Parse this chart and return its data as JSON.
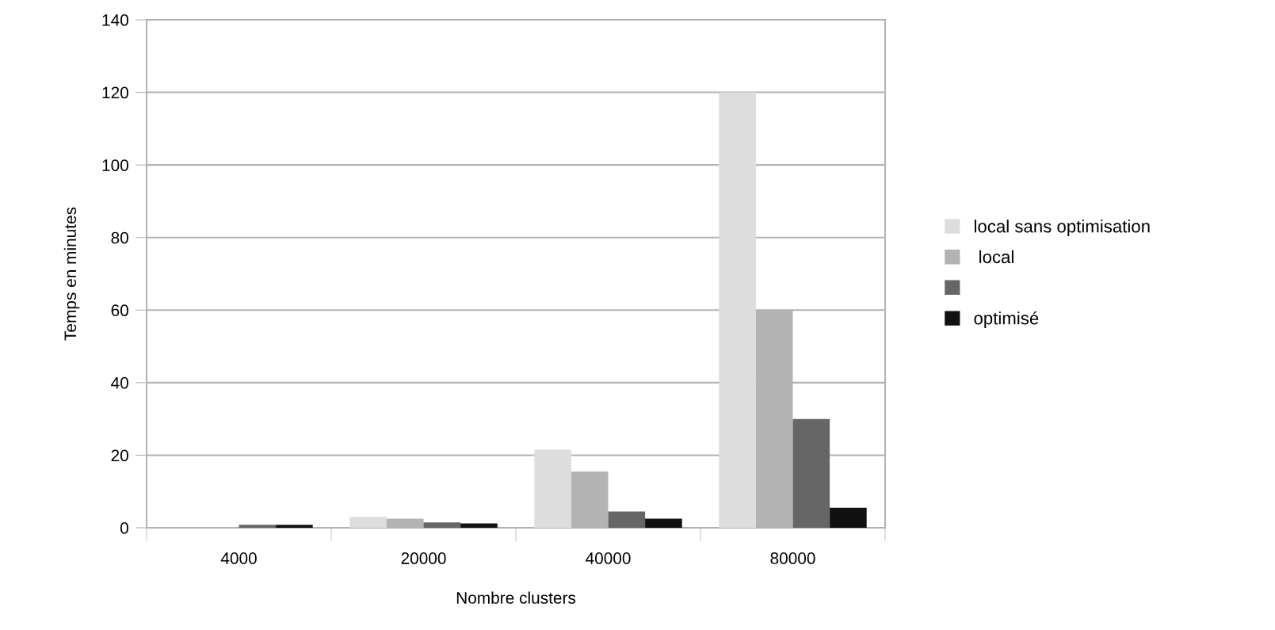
{
  "chart_data": {
    "type": "bar",
    "xlabel": "Nombre clusters",
    "ylabel": "Temps en minutes",
    "categories": [
      "4000",
      "20000",
      "40000",
      "80000"
    ],
    "series": [
      {
        "name": "local sans optimisation",
        "color": "#dddddd",
        "values": [
          null,
          3,
          21.5,
          120
        ]
      },
      {
        "name": " local",
        "color": "#b3b3b3",
        "values": [
          0.2,
          2.5,
          15.5,
          60
        ]
      },
      {
        "color": "#666666",
        "values": [
          0.8,
          1.5,
          4.5,
          30
        ]
      },
      {
        "name": "optimisé",
        "color": "#111111",
        "values": [
          0.8,
          1.2,
          2.5,
          5.5
        ]
      }
    ],
    "ylim": [
      0,
      140
    ],
    "yticks": [
      0,
      20,
      40,
      60,
      80,
      100,
      120,
      140
    ],
    "grid": "y",
    "legend": "right"
  }
}
